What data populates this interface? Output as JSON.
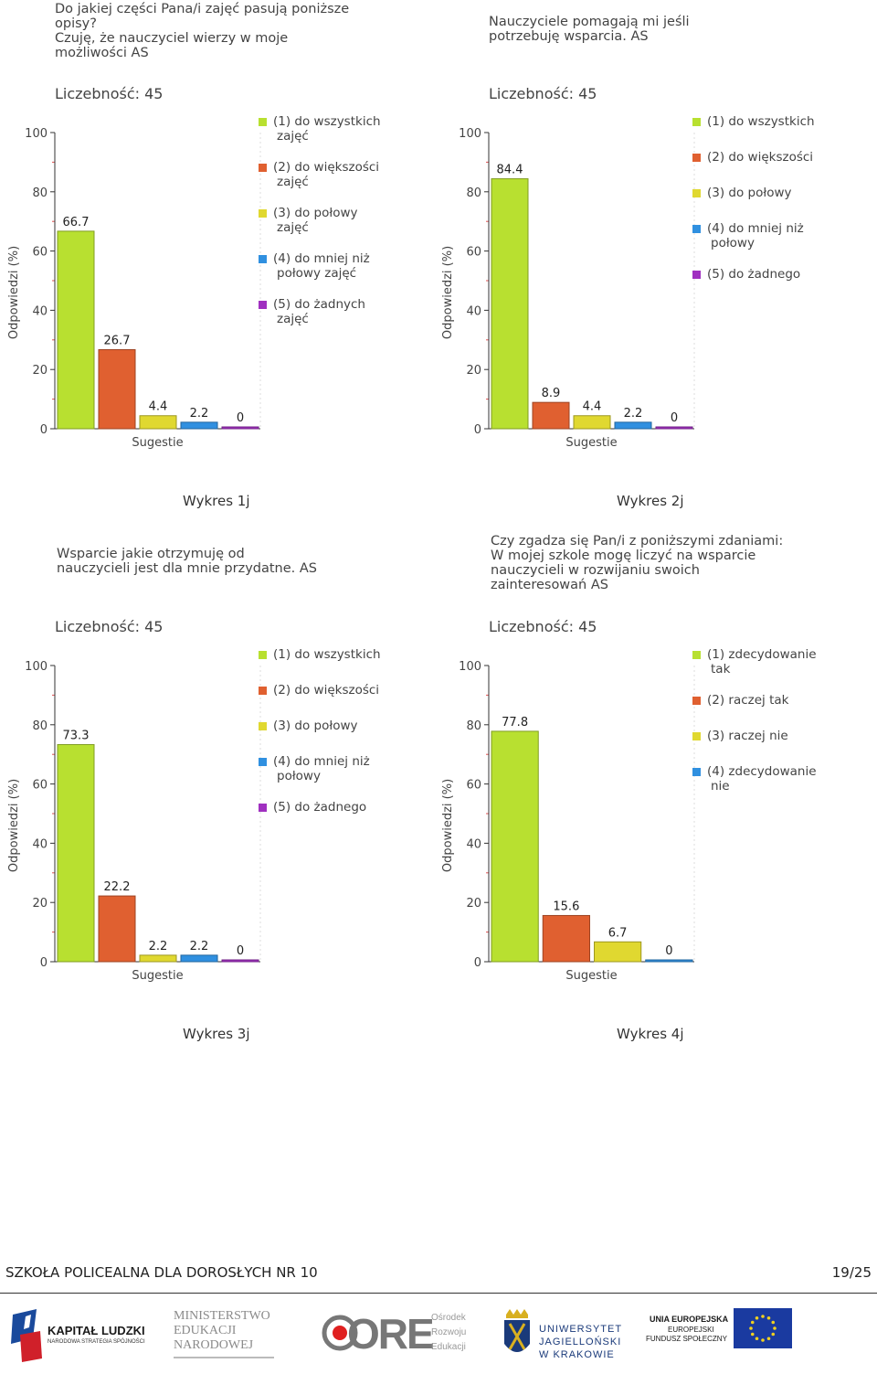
{
  "charts": [
    {
      "question": "Do jakiej części Pana/i zajęć pasują poniższe\nopisy?\nCzuję, że nauczyciel wierzy w moje\nmożliwości AS",
      "count_label": "Liczebność: 45",
      "caption": "Wykres 1j",
      "chart_data": {
        "type": "bar",
        "categories": [
          "(1) do wszystkich zajęć",
          "(2) do większości zajęć",
          "(3) do połowy zajęć",
          "(4) do mniej niż połowy zajęć",
          "(5) do żadnych zajęć"
        ],
        "values": [
          66.7,
          26.7,
          4.4,
          2.2,
          0
        ],
        "value_labels": [
          "66.7",
          "26.7",
          "4.4",
          "2.2",
          "0"
        ],
        "xlabel": "Sugestie",
        "ylabel": "Odpowiedzi (%)",
        "ylim": [
          0,
          100
        ],
        "yticks": [
          "0",
          "20",
          "40",
          "60",
          "80",
          "100"
        ],
        "legend": [
          "(1) do wszystkich\nzajęć",
          "(2) do większości\nzajęć",
          "(3) do połowy\nzajęć",
          "(4) do mniej niż\npołowy zajęć",
          "(5) do żadnych\nzajęć"
        ],
        "colors": [
          "#b8e030",
          "#e06030",
          "#e0d830",
          "#3090e0",
          "#a030c0"
        ]
      }
    },
    {
      "question": "Nauczyciele pomagają mi jeśli\npotrzebuję wsparcia. AS",
      "count_label": "Liczebność: 45",
      "caption": "Wykres 2j",
      "chart_data": {
        "type": "bar",
        "categories": [
          "(1) do wszystkich",
          "(2) do większości",
          "(3) do połowy",
          "(4) do mniej niż połowy",
          "(5) do żadnego"
        ],
        "values": [
          84.4,
          8.9,
          4.4,
          2.2,
          0
        ],
        "value_labels": [
          "84.4",
          "8.9",
          "4.4",
          "2.2",
          "0"
        ],
        "xlabel": "Sugestie",
        "ylabel": "Odpowiedzi (%)",
        "ylim": [
          0,
          100
        ],
        "yticks": [
          "0",
          "20",
          "40",
          "60",
          "80",
          "100"
        ],
        "legend": [
          "(1) do wszystkich",
          "(2) do większości",
          "(3) do połowy",
          "(4) do mniej niż\npołowy",
          "(5) do żadnego"
        ],
        "colors": [
          "#b8e030",
          "#e06030",
          "#e0d830",
          "#3090e0",
          "#a030c0"
        ]
      }
    },
    {
      "question": "Wsparcie jakie  otrzymuję od\nnauczycieli jest dla mnie przydatne. AS",
      "count_label": "Liczebność: 45",
      "caption": "Wykres 3j",
      "chart_data": {
        "type": "bar",
        "categories": [
          "(1) do wszystkich",
          "(2) do większości",
          "(3) do połowy",
          "(4) do mniej niż połowy",
          "(5) do żadnego"
        ],
        "values": [
          73.3,
          22.2,
          2.2,
          2.2,
          0
        ],
        "value_labels": [
          "73.3",
          "22.2",
          "2.2",
          "2.2",
          "0"
        ],
        "xlabel": "Sugestie",
        "ylabel": "Odpowiedzi (%)",
        "ylim": [
          0,
          100
        ],
        "yticks": [
          "0",
          "20",
          "40",
          "60",
          "80",
          "100"
        ],
        "legend": [
          "(1) do wszystkich",
          "(2) do większości",
          "(3) do połowy",
          "(4) do mniej niż\npołowy",
          "(5) do żadnego"
        ],
        "colors": [
          "#b8e030",
          "#e06030",
          "#e0d830",
          "#3090e0",
          "#a030c0"
        ]
      }
    },
    {
      "question": "Czy zgadza się Pan/i z poniższymi zdaniami:\nW mojej szkole mogę liczyć na wsparcie\nnauczycieli w rozwijaniu swoich\nzainteresowań AS",
      "count_label": "Liczebność: 45",
      "caption": "Wykres 4j",
      "chart_data": {
        "type": "bar",
        "categories": [
          "(1) zdecydowanie tak",
          "(2) raczej tak",
          "(3) raczej nie",
          "(4) zdecydowanie nie"
        ],
        "values": [
          77.8,
          15.6,
          6.7,
          0
        ],
        "value_labels": [
          "77.8",
          "15.6",
          "6.7",
          "0"
        ],
        "xlabel": "Sugestie",
        "ylabel": "Odpowiedzi (%)",
        "ylim": [
          0,
          100
        ],
        "yticks": [
          "0",
          "20",
          "40",
          "60",
          "80",
          "100"
        ],
        "legend": [
          "(1) zdecydowanie\ntak",
          "(2) raczej tak",
          "(3) raczej nie",
          "(4) zdecydowanie\nnie"
        ],
        "colors": [
          "#b8e030",
          "#e06030",
          "#e0d830",
          "#3090e0"
        ]
      }
    }
  ],
  "footer": {
    "school": "SZKOŁA POLICEALNA DLA DOROSŁYCH NR 10",
    "page": "19/25"
  },
  "logos": {
    "kapital": {
      "title": "KAPITAŁ LUDZKI",
      "subtitle": "NARODOWA STRATEGIA SPÓJNOŚCI"
    },
    "men": {
      "line1": "MINISTERSTWO",
      "line2": "EDUKACJI",
      "line3": "NARODOWEJ"
    },
    "ore": {
      "mark": "ORE",
      "line1": "Ośrodek",
      "line2": "Rozwoju",
      "line3": "Edukacji"
    },
    "uj": {
      "line1": "UNIWERSYTET",
      "line2": "JAGIELLOŃSKI",
      "line3": "W KRAKOWIE"
    },
    "ue": {
      "line1": "UNIA EUROPEJSKA",
      "line2": "EUROPEJSKI",
      "line3": "FUNDUSZ SPOŁECZNY"
    }
  }
}
